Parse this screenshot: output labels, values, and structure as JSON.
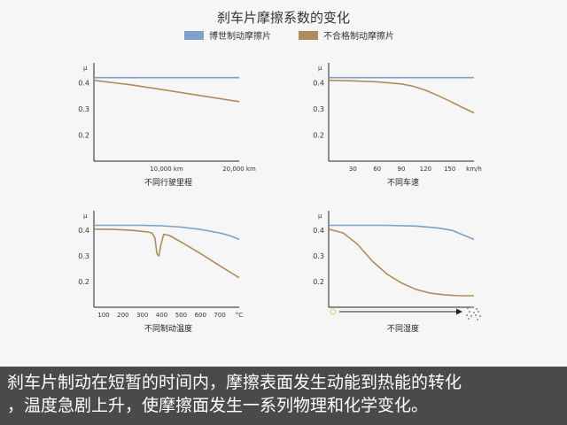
{
  "figure_title": "刹车片摩擦系数的变化",
  "legend": [
    {
      "label": "博世制动摩擦片",
      "color": "#7e9fc9"
    },
    {
      "label": "不合格制动摩擦片",
      "color": "#b08b5c"
    }
  ],
  "caption": {
    "line1": "刹车片制动在短暂的时间内，摩擦表面发生动能到热能的转化",
    "line2": "，温度急剧上升，使摩擦面发生一系列物理和化学变化。"
  },
  "chart_data": [
    {
      "type": "line",
      "title": "不同行驶里程",
      "ylabel": "μ",
      "xlabel": "",
      "yticks": [
        "0.4",
        "0.3",
        "0.2"
      ],
      "ylim": [
        0.1,
        0.47
      ],
      "xlim": [
        0,
        20000
      ],
      "xticks": [
        {
          "value": 10000,
          "label": "10,000 km"
        },
        {
          "value": 20000,
          "label": "20,000 km"
        }
      ],
      "series": [
        {
          "name": "博世制动摩擦片",
          "x": [
            0,
            20000
          ],
          "y": [
            0.42,
            0.42
          ]
        },
        {
          "name": "不合格制动摩擦片",
          "x": [
            0,
            5000,
            10000,
            15000,
            20000
          ],
          "y": [
            0.41,
            0.393,
            0.372,
            0.35,
            0.328
          ]
        }
      ]
    },
    {
      "type": "line",
      "title": "不同车速",
      "ylabel": "μ",
      "xlabel": "",
      "yticks": [
        "0.4",
        "0.3",
        "0.2"
      ],
      "ylim": [
        0.1,
        0.47
      ],
      "xlim": [
        0,
        180
      ],
      "xticks": [
        {
          "value": 30,
          "label": "30"
        },
        {
          "value": 60,
          "label": "60"
        },
        {
          "value": 90,
          "label": "90"
        },
        {
          "value": 120,
          "label": "120"
        },
        {
          "value": 150,
          "label": "150"
        },
        {
          "value": 180,
          "label": "km/h"
        }
      ],
      "series": [
        {
          "name": "博世制动摩擦片",
          "x": [
            0,
            180
          ],
          "y": [
            0.42,
            0.42
          ]
        },
        {
          "name": "不合格制动摩擦片",
          "x": [
            0,
            30,
            60,
            90,
            105,
            120,
            135,
            150,
            165,
            180
          ],
          "y": [
            0.41,
            0.408,
            0.404,
            0.396,
            0.387,
            0.372,
            0.352,
            0.33,
            0.307,
            0.285
          ]
        }
      ]
    },
    {
      "type": "line",
      "title": "不同制动温度",
      "ylabel": "μ",
      "xlabel": "",
      "yticks": [
        "0.4",
        "0.3",
        "0.2"
      ],
      "ylim": [
        0.1,
        0.47
      ],
      "xlim": [
        50,
        800
      ],
      "xticks": [
        {
          "value": 100,
          "label": "100"
        },
        {
          "value": 200,
          "label": "200"
        },
        {
          "value": 300,
          "label": "300"
        },
        {
          "value": 400,
          "label": "400"
        },
        {
          "value": 500,
          "label": "500"
        },
        {
          "value": 600,
          "label": "600"
        },
        {
          "value": 700,
          "label": "700"
        },
        {
          "value": 800,
          "label": "°C"
        }
      ],
      "series": [
        {
          "name": "博世制动摩擦片",
          "x": [
            50,
            300,
            400,
            500,
            600,
            700,
            750,
            800
          ],
          "y": [
            0.42,
            0.42,
            0.418,
            0.413,
            0.404,
            0.39,
            0.38,
            0.365
          ]
        },
        {
          "name": "不合格制动摩擦片",
          "x": [
            50,
            150,
            250,
            330,
            350,
            365,
            375,
            385,
            395,
            410,
            440,
            500,
            600,
            700,
            800
          ],
          "y": [
            0.405,
            0.404,
            0.4,
            0.394,
            0.39,
            0.37,
            0.31,
            0.3,
            0.34,
            0.385,
            0.38,
            0.355,
            0.31,
            0.262,
            0.215
          ]
        }
      ]
    },
    {
      "type": "line",
      "title": "不同湿度",
      "ylabel": "μ",
      "xlabel": "",
      "yticks": [
        "0.4",
        "0.3",
        "0.2"
      ],
      "ylim": [
        0.1,
        0.47
      ],
      "xlim": [
        0,
        100
      ],
      "xticks": [],
      "series": [
        {
          "name": "博世制动摩擦片",
          "x": [
            0,
            40,
            60,
            75,
            85,
            100
          ],
          "y": [
            0.42,
            0.42,
            0.417,
            0.41,
            0.4,
            0.365
          ]
        },
        {
          "name": "不合格制动摩擦片",
          "x": [
            0,
            10,
            20,
            30,
            40,
            50,
            60,
            70,
            80,
            90,
            100
          ],
          "y": [
            0.405,
            0.39,
            0.345,
            0.28,
            0.23,
            0.195,
            0.17,
            0.155,
            0.148,
            0.145,
            0.145
          ]
        }
      ]
    }
  ]
}
